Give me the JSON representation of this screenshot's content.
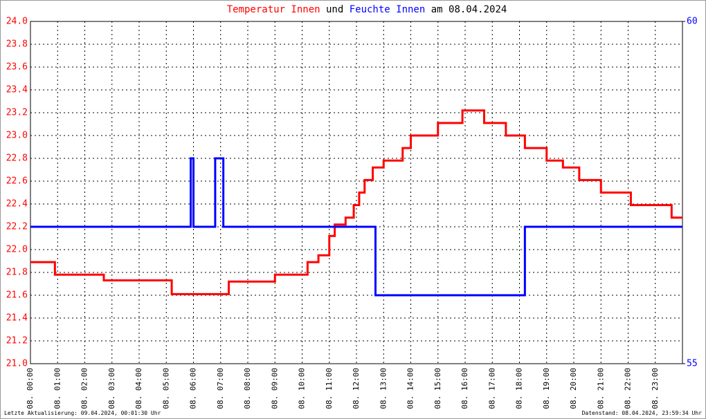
{
  "chart_data": {
    "type": "line",
    "title_connector": "und",
    "title_date": "am 08.04.2024",
    "series": [
      {
        "name": "Temperatur Innen",
        "color": "#ff0000",
        "x": [
          0,
          0.9,
          0.9,
          2.7,
          2.7,
          5.2,
          5.2,
          7.3,
          7.3,
          9.0,
          9.0,
          10.2,
          10.2,
          10.6,
          10.6,
          11.0,
          11.0,
          11.2,
          11.2,
          11.6,
          11.6,
          11.9,
          11.9,
          12.1,
          12.1,
          12.3,
          12.3,
          12.6,
          12.6,
          13.0,
          13.0,
          13.7,
          13.7,
          14.0,
          14.0,
          15.0,
          15.0,
          15.9,
          15.9,
          16.7,
          16.7,
          17.5,
          17.5,
          18.2,
          18.2,
          19.0,
          19.0,
          19.6,
          19.6,
          20.2,
          20.2,
          21.0,
          21.0,
          22.1,
          22.1,
          23.6,
          23.6,
          24
        ],
        "values": [
          21.89,
          21.89,
          21.78,
          21.78,
          21.73,
          21.73,
          21.61,
          21.61,
          21.72,
          21.72,
          21.78,
          21.78,
          21.89,
          21.89,
          21.95,
          21.95,
          22.12,
          22.12,
          22.22,
          22.22,
          22.28,
          22.28,
          22.39,
          22.39,
          22.5,
          22.5,
          22.61,
          22.61,
          22.72,
          22.72,
          22.78,
          22.78,
          22.89,
          22.89,
          23.0,
          23.0,
          23.11,
          23.11,
          23.22,
          23.22,
          23.11,
          23.11,
          23.0,
          23.0,
          22.89,
          22.89,
          22.78,
          22.78,
          22.72,
          22.72,
          22.61,
          22.61,
          22.5,
          22.5,
          22.39,
          22.39,
          22.28,
          22.28
        ]
      },
      {
        "name": "Feuchte Innen",
        "color": "#0000ff",
        "axis": "y2",
        "x": [
          0,
          5.9,
          5.9,
          6.0,
          6.0,
          6.8,
          6.8,
          7.1,
          7.1,
          12.7,
          12.7,
          18.2,
          18.2,
          24
        ],
        "values": [
          57,
          57,
          58,
          58,
          57,
          57,
          58,
          58,
          57,
          57,
          56,
          56,
          57,
          57
        ]
      }
    ],
    "xlim": [
      0,
      24
    ],
    "xticks": [
      {
        "value": 0,
        "label": "08. 00:00"
      },
      {
        "value": 1,
        "label": "08. 01:00"
      },
      {
        "value": 2,
        "label": "08. 02:00"
      },
      {
        "value": 3,
        "label": "08. 03:00"
      },
      {
        "value": 4,
        "label": "08. 04:00"
      },
      {
        "value": 5,
        "label": "08. 05:00"
      },
      {
        "value": 6,
        "label": "08. 06:00"
      },
      {
        "value": 7,
        "label": "08. 07:00"
      },
      {
        "value": 8,
        "label": "08. 08:00"
      },
      {
        "value": 9,
        "label": "08. 09:00"
      },
      {
        "value": 10,
        "label": "08. 10:00"
      },
      {
        "value": 11,
        "label": "08. 11:00"
      },
      {
        "value": 12,
        "label": "08. 12:00"
      },
      {
        "value": 13,
        "label": "08. 13:00"
      },
      {
        "value": 14,
        "label": "08. 14:00"
      },
      {
        "value": 15,
        "label": "08. 15:00"
      },
      {
        "value": 16,
        "label": "08. 16:00"
      },
      {
        "value": 17,
        "label": "08. 17:00"
      },
      {
        "value": 18,
        "label": "08. 18:00"
      },
      {
        "value": 19,
        "label": "08. 19:00"
      },
      {
        "value": 20,
        "label": "08. 20:00"
      },
      {
        "value": 21,
        "label": "08. 21:00"
      },
      {
        "value": 22,
        "label": "08. 22:00"
      },
      {
        "value": 23,
        "label": "08. 23:00"
      }
    ],
    "ylim": [
      21,
      24
    ],
    "yticks": [
      {
        "value": 21,
        "label": "21.0"
      },
      {
        "value": 21.2,
        "label": "21.2"
      },
      {
        "value": 21.4,
        "label": "21.4"
      },
      {
        "value": 21.6,
        "label": "21.6"
      },
      {
        "value": 21.8,
        "label": "21.8"
      },
      {
        "value": 22,
        "label": "22.0"
      },
      {
        "value": 22.2,
        "label": "22.2"
      },
      {
        "value": 22.4,
        "label": "22.4"
      },
      {
        "value": 22.6,
        "label": "22.6"
      },
      {
        "value": 22.8,
        "label": "22.8"
      },
      {
        "value": 23,
        "label": "23.0"
      },
      {
        "value": 23.2,
        "label": "23.2"
      },
      {
        "value": 23.4,
        "label": "23.4"
      },
      {
        "value": 23.6,
        "label": "23.6"
      },
      {
        "value": 23.8,
        "label": "23.8"
      },
      {
        "value": 24,
        "label": "24.0"
      }
    ],
    "y2lim": [
      55,
      60
    ],
    "y2ticks": [
      55,
      60
    ],
    "grid": true
  },
  "footer": {
    "left": "Letzte Aktualisierung: 09.04.2024, 00:01:30 Uhr",
    "right": "Datenstand: 08.04.2024, 23:59:34 Uhr"
  }
}
